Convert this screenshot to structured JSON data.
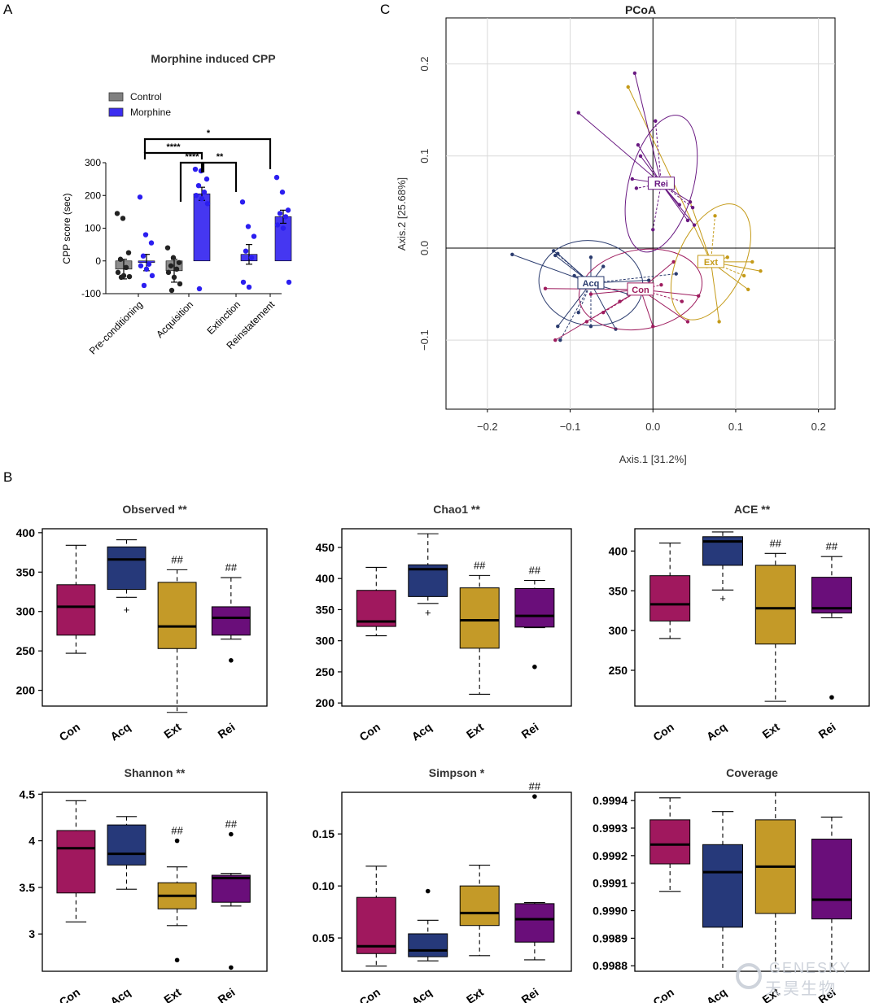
{
  "panels": {
    "a": "A",
    "b": "B",
    "c": "C"
  },
  "watermark": {
    "line1": "GENESKY",
    "line2": "天昊生物"
  },
  "chart_data": [
    {
      "type": "bar",
      "panel": "A",
      "title": "Morphine induced CPP",
      "ylabel": "CPP score (sec)",
      "ylim": [
        -100,
        300
      ],
      "yticks": [
        -100,
        0,
        100,
        200,
        300
      ],
      "categories": [
        "Pre-conditioning",
        "Acquisition",
        "Extinction",
        "Reinstatement"
      ],
      "legend": {
        "position": "top-left",
        "entries": [
          "Control",
          "Morphine"
        ]
      },
      "colors": {
        "Control": "#808080",
        "Morphine": "#3b2cf0"
      },
      "series": [
        {
          "name": "Control",
          "values": [
            -25,
            -30,
            null,
            null
          ],
          "errors": [
            30,
            35,
            null,
            null
          ],
          "points": [
            [
              145,
              130,
              25,
              5,
              -20,
              -35,
              -45,
              -48,
              -50
            ],
            [
              40,
              10,
              -5,
              -15,
              -25,
              -35,
              -50,
              -70,
              -90
            ],
            [],
            []
          ]
        },
        {
          "name": "Morphine",
          "values": [
            -5,
            205,
            20,
            135
          ],
          "errors": [
            25,
            20,
            30,
            20
          ],
          "points": [
            [
              195,
              80,
              55,
              15,
              -10,
              -15,
              -25,
              -45,
              -75
            ],
            [
              280,
              275,
              250,
              230,
              210,
              200,
              190,
              175,
              -85
            ],
            [
              180,
              105,
              75,
              30,
              10,
              -65,
              -80
            ],
            [
              255,
              210,
              155,
              145,
              135,
              110,
              100,
              -65
            ]
          ]
        }
      ],
      "significance": [
        {
          "from": 0,
          "to": 1,
          "label": "****"
        },
        {
          "from": 1,
          "to": 1,
          "label": "****"
        },
        {
          "from": 1,
          "to": 2,
          "label": "**"
        },
        {
          "from": 0,
          "to": 3,
          "label": "*"
        }
      ]
    },
    {
      "type": "scatter",
      "panel": "C",
      "title": "PCoA",
      "xlabel": "Axis.1  [31.2%]",
      "ylabel": "Axis.2  [25.68%]",
      "xlim": [
        -0.25,
        0.22
      ],
      "ylim": [
        -0.175,
        0.25
      ],
      "xticks": [
        -0.2,
        -0.1,
        0.0,
        0.1,
        0.2
      ],
      "yticks": [
        -0.1,
        0.0,
        0.1,
        0.2
      ],
      "grid": true,
      "series": [
        {
          "name": "Acq",
          "color": "#2a3b6e",
          "center": [
            -0.075,
            -0.038
          ],
          "ellipse": {
            "rx": 0.063,
            "ry": 0.046,
            "angle": 8
          },
          "points": [
            [
              -0.17,
              -0.007
            ],
            [
              -0.115,
              -0.085
            ],
            [
              -0.112,
              -0.1
            ],
            [
              -0.118,
              -0.008
            ],
            [
              -0.115,
              -0.006
            ],
            [
              -0.12,
              -0.003
            ],
            [
              -0.075,
              -0.01
            ],
            [
              -0.045,
              -0.088
            ],
            [
              -0.09,
              -0.07
            ],
            [
              -0.085,
              -0.04
            ],
            [
              -0.03,
              -0.05
            ],
            [
              0.028,
              -0.028
            ],
            [
              -0.06,
              -0.02
            ],
            [
              -0.005,
              -0.035
            ],
            [
              -0.075,
              -0.085
            ],
            [
              -0.095,
              -0.03
            ]
          ]
        },
        {
          "name": "Con",
          "color": "#9e1c5e",
          "center": [
            -0.015,
            -0.045
          ],
          "ellipse": {
            "rx": 0.075,
            "ry": 0.043,
            "angle": -10
          },
          "points": [
            [
              -0.118,
              -0.1
            ],
            [
              -0.13,
              -0.044
            ],
            [
              -0.08,
              -0.08
            ],
            [
              0.0,
              -0.085
            ],
            [
              0.042,
              -0.08
            ],
            [
              0.035,
              -0.058
            ],
            [
              0.055,
              -0.052
            ],
            [
              0.025,
              -0.015
            ],
            [
              -0.06,
              -0.07
            ],
            [
              -0.075,
              -0.05
            ],
            [
              -0.04,
              -0.058
            ],
            [
              0.01,
              -0.04
            ]
          ]
        },
        {
          "name": "Ext",
          "color": "#c49a18",
          "center": [
            0.07,
            -0.015
          ],
          "ellipse": {
            "rx": 0.075,
            "ry": 0.036,
            "angle": 115
          },
          "points": [
            [
              -0.03,
              0.175
            ],
            [
              0.045,
              0.05
            ],
            [
              0.075,
              0.035
            ],
            [
              0.12,
              -0.015
            ],
            [
              0.13,
              -0.025
            ],
            [
              0.11,
              -0.03
            ],
            [
              0.115,
              -0.045
            ],
            [
              0.08,
              -0.08
            ],
            [
              0.065,
              -0.02
            ],
            [
              0.09,
              -0.01
            ]
          ]
        },
        {
          "name": "Rei",
          "color": "#6a1a82",
          "center": [
            0.01,
            0.07
          ],
          "ellipse": {
            "rx": 0.085,
            "ry": 0.035,
            "angle": 105
          },
          "points": [
            [
              -0.09,
              0.147
            ],
            [
              -0.022,
              0.19
            ],
            [
              0.003,
              0.138
            ],
            [
              -0.018,
              0.112
            ],
            [
              -0.015,
              0.1
            ],
            [
              -0.02,
              0.065
            ],
            [
              0.032,
              0.047
            ],
            [
              0.045,
              0.05
            ],
            [
              0.048,
              0.044
            ],
            [
              0.042,
              0.03
            ],
            [
              0.05,
              0.025
            ],
            [
              0.0,
              0.02
            ],
            [
              -0.025,
              0.075
            ]
          ]
        }
      ]
    },
    {
      "type": "box",
      "panel": "B",
      "title": "Observed **",
      "ylim": [
        180,
        405
      ],
      "yticks": [
        200,
        250,
        300,
        350,
        400
      ],
      "categories": [
        "Con",
        "Acq",
        "Ext",
        "Rei"
      ],
      "colors": [
        "#a0185e",
        "#26397a",
        "#c49a28",
        "#6a0e7a"
      ],
      "boxes": [
        {
          "min": 247,
          "q1": 270,
          "median": 306,
          "q3": 334,
          "max": 384,
          "outliers": [],
          "marker": ""
        },
        {
          "min": 318,
          "q1": 328,
          "median": 366,
          "q3": 382,
          "max": 391,
          "outliers": [
            {
              "v": 302,
              "s": "+"
            }
          ],
          "marker": ""
        },
        {
          "min": 172,
          "q1": 253,
          "median": 281,
          "q3": 337,
          "max": 353,
          "outliers": [],
          "marker": "##"
        },
        {
          "min": 265,
          "q1": 270,
          "median": 292,
          "q3": 306,
          "max": 343,
          "outliers": [
            {
              "v": 238,
              "s": "dot"
            }
          ],
          "marker": "##"
        }
      ]
    },
    {
      "type": "box",
      "panel": "B",
      "title": "Chao1 **",
      "ylim": [
        195,
        480
      ],
      "yticks": [
        200,
        250,
        300,
        350,
        400,
        450
      ],
      "categories": [
        "Con",
        "Acq",
        "Ext",
        "Rei"
      ],
      "colors": [
        "#a0185e",
        "#26397a",
        "#c49a28",
        "#6a0e7a"
      ],
      "boxes": [
        {
          "min": 308,
          "q1": 323,
          "median": 331,
          "q3": 381,
          "max": 418,
          "outliers": [],
          "marker": ""
        },
        {
          "min": 360,
          "q1": 371,
          "median": 415,
          "q3": 422,
          "max": 472,
          "outliers": [
            {
              "v": 345,
              "s": "+"
            }
          ],
          "marker": ""
        },
        {
          "min": 214,
          "q1": 288,
          "median": 333,
          "q3": 385,
          "max": 405,
          "outliers": [],
          "marker": "##"
        },
        {
          "min": 321,
          "q1": 322,
          "median": 340,
          "q3": 384,
          "max": 397,
          "outliers": [
            {
              "v": 258,
              "s": "dot"
            }
          ],
          "marker": "##"
        }
      ]
    },
    {
      "type": "box",
      "panel": "B",
      "title": "ACE **",
      "ylim": [
        205,
        428
      ],
      "yticks": [
        250,
        300,
        350,
        400
      ],
      "categories": [
        "Con",
        "Acq",
        "Ext",
        "Rei"
      ],
      "colors": [
        "#a0185e",
        "#26397a",
        "#c49a28",
        "#6a0e7a"
      ],
      "boxes": [
        {
          "min": 290,
          "q1": 312,
          "median": 333,
          "q3": 369,
          "max": 410,
          "outliers": [],
          "marker": ""
        },
        {
          "min": 351,
          "q1": 382,
          "median": 412,
          "q3": 418,
          "max": 424,
          "outliers": [
            {
              "v": 340,
              "s": "+"
            }
          ],
          "marker": ""
        },
        {
          "min": 211,
          "q1": 283,
          "median": 328,
          "q3": 382,
          "max": 397,
          "outliers": [],
          "marker": "##"
        },
        {
          "min": 316,
          "q1": 322,
          "median": 328,
          "q3": 367,
          "max": 393,
          "outliers": [
            {
              "v": 216,
              "s": "dot"
            }
          ],
          "marker": "##"
        }
      ]
    },
    {
      "type": "box",
      "panel": "B",
      "title": "Shannon **",
      "ylim": [
        2.6,
        4.52
      ],
      "yticks": [
        3.0,
        3.5,
        4.0,
        4.5
      ],
      "categories": [
        "Con",
        "Acq",
        "Ext",
        "Rei"
      ],
      "colors": [
        "#a0185e",
        "#26397a",
        "#c49a28",
        "#6a0e7a"
      ],
      "boxes": [
        {
          "min": 3.13,
          "q1": 3.44,
          "median": 3.92,
          "q3": 4.11,
          "max": 4.43,
          "outliers": [],
          "marker": ""
        },
        {
          "min": 3.48,
          "q1": 3.74,
          "median": 3.86,
          "q3": 4.17,
          "max": 4.26,
          "outliers": [],
          "marker": ""
        },
        {
          "min": 3.09,
          "q1": 3.27,
          "median": 3.41,
          "q3": 3.55,
          "max": 3.72,
          "outliers": [
            {
              "v": 4.0,
              "s": "dot"
            },
            {
              "v": 2.72,
              "s": "dot"
            }
          ],
          "marker": "##"
        },
        {
          "min": 3.3,
          "q1": 3.34,
          "median": 3.6,
          "q3": 3.63,
          "max": 3.65,
          "outliers": [
            {
              "v": 4.07,
              "s": "dot"
            },
            {
              "v": 2.64,
              "s": "dot"
            }
          ],
          "marker": "##"
        }
      ]
    },
    {
      "type": "box",
      "panel": "B",
      "title": "Simpson *",
      "ylim": [
        0.018,
        0.19
      ],
      "yticks": [
        0.05,
        0.1,
        0.15
      ],
      "categories": [
        "Con",
        "Acq",
        "Ext",
        "Rei"
      ],
      "colors": [
        "#a0185e",
        "#26397a",
        "#c49a28",
        "#6a0e7a"
      ],
      "boxes": [
        {
          "min": 0.023,
          "q1": 0.035,
          "median": 0.042,
          "q3": 0.089,
          "max": 0.119,
          "outliers": [],
          "marker": ""
        },
        {
          "min": 0.028,
          "q1": 0.032,
          "median": 0.038,
          "q3": 0.054,
          "max": 0.067,
          "outliers": [
            {
              "v": 0.095,
              "s": "dot"
            }
          ],
          "marker": ""
        },
        {
          "min": 0.033,
          "q1": 0.062,
          "median": 0.074,
          "q3": 0.1,
          "max": 0.12,
          "outliers": [],
          "marker": ""
        },
        {
          "min": 0.029,
          "q1": 0.046,
          "median": 0.068,
          "q3": 0.083,
          "max": 0.084,
          "outliers": [
            {
              "v": 0.186,
              "s": "dot"
            }
          ],
          "marker": "##"
        }
      ]
    },
    {
      "type": "box",
      "panel": "B",
      "title": "Coverage",
      "ylim": [
        0.99878,
        0.99943
      ],
      "yticks": [
        0.9988,
        0.9989,
        0.999,
        0.9991,
        0.9992,
        0.9993,
        0.9994
      ],
      "ytick_labels": [
        "0.9988",
        "0.9989",
        "0.9990",
        "0.9991",
        "0.9992",
        "0.9993",
        "0.9994"
      ],
      "categories": [
        "Con",
        "Acq",
        "Ext",
        "Rei"
      ],
      "colors": [
        "#a0185e",
        "#26397a",
        "#c49a28",
        "#6a0e7a"
      ],
      "boxes": [
        {
          "min": 0.99907,
          "q1": 0.99917,
          "median": 0.99924,
          "q3": 0.99933,
          "max": 0.99941,
          "outliers": [],
          "marker": ""
        },
        {
          "min": 0.99878,
          "q1": 0.99894,
          "median": 0.99914,
          "q3": 0.99924,
          "max": 0.99936,
          "outliers": [],
          "marker": ""
        },
        {
          "min": 0.99878,
          "q1": 0.99899,
          "median": 0.99916,
          "q3": 0.99933,
          "max": 0.99943,
          "outliers": [],
          "marker": ""
        },
        {
          "min": 0.99878,
          "q1": 0.99897,
          "median": 0.99904,
          "q3": 0.99926,
          "max": 0.99934,
          "outliers": [],
          "marker": ""
        }
      ]
    }
  ]
}
